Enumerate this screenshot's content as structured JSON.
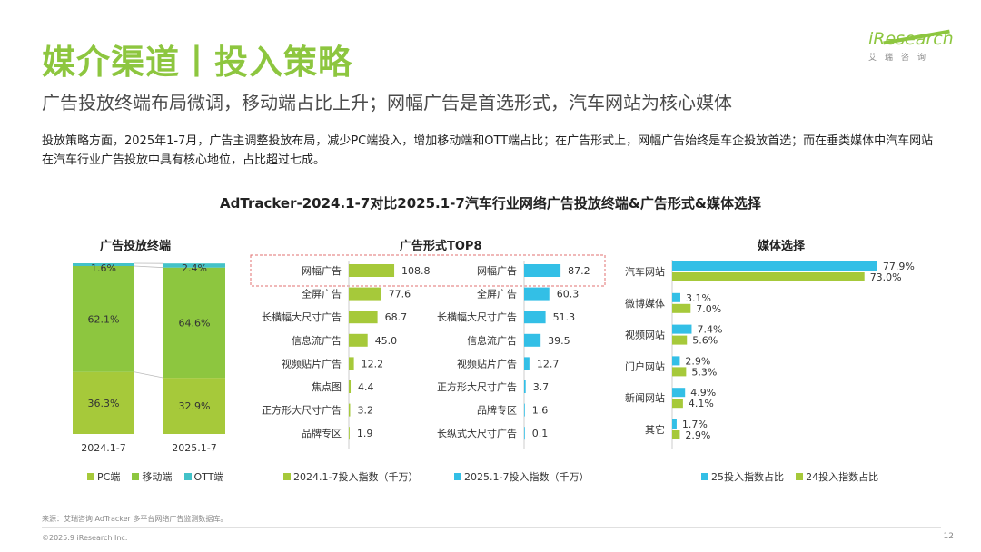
{
  "header": {
    "title": "媒介渠道丨投入策略",
    "subtitle": "广告投放终端布局微调，移动端占比上升；网幅广告是首选形式，汽车网站为核心媒体",
    "description": "投放策略方面，2025年1-7月，广告主调整投放布局，减少PC端投入，增加移动端和OTT端占比；在广告形式上，网幅广告始终是车企投放首选；而在垂类媒体中汽车网站在汽车行业广告投放中具有核心地位，占比超过七成。",
    "logo_text": "iResearch",
    "logo_sub": "艾瑞咨询"
  },
  "chart_main_title": "AdTracker-2024.1-7对比2025.1-7汽车行业网络广告投放终端&广告形式&媒体选择",
  "footer": {
    "source": "来源：艾瑞咨询 AdTracker 多平台网络广告监测数据库。",
    "copyright": "©2025.9 iResearch Inc.",
    "page": "12"
  },
  "colors": {
    "green": "#a6c93a",
    "blue": "#33bfe6",
    "teal": "#43c2c8",
    "dashed_red": "#e07070"
  },
  "chart_data": [
    {
      "type": "bar",
      "stacked": true,
      "title": "广告投放终端",
      "categories": [
        "2024.1-7",
        "2025.1-7"
      ],
      "series": [
        {
          "name": "PC端",
          "values": [
            36.3,
            32.9
          ],
          "labels": [
            "36.3%",
            "32.9%"
          ]
        },
        {
          "name": "移动端",
          "values": [
            62.1,
            64.6
          ],
          "labels": [
            "62.1%",
            "64.6%"
          ]
        },
        {
          "name": "OTT端",
          "values": [
            1.6,
            2.4
          ],
          "labels": [
            "1.6%",
            "2.4%"
          ]
        }
      ]
    },
    {
      "type": "bar",
      "orientation": "horizontal",
      "title": "广告形式TOP8",
      "panels": [
        {
          "series_name": "2024.1-7投入指数（千万）",
          "categories": [
            "网幅广告",
            "全屏广告",
            "长横幅大尺寸广告",
            "信息流广告",
            "视频贴片广告",
            "焦点图",
            "正方形大尺寸广告",
            "品牌专区"
          ],
          "values": [
            108.8,
            77.6,
            68.7,
            45.0,
            12.2,
            4.4,
            3.2,
            1.9
          ],
          "labels": [
            "108.8",
            "77.6",
            "68.7",
            "45.0",
            "12.2",
            "4.4",
            "3.2",
            "1.9"
          ]
        },
        {
          "series_name": "2025.1-7投入指数（千万）",
          "categories": [
            "网幅广告",
            "全屏广告",
            "长横幅大尺寸广告",
            "信息流广告",
            "视频贴片广告",
            "正方形大尺寸广告",
            "品牌专区",
            "长纵式大尺寸广告"
          ],
          "values": [
            87.2,
            60.3,
            51.3,
            39.5,
            12.7,
            3.7,
            1.6,
            0.1
          ],
          "labels": [
            "87.2",
            "60.3",
            "51.3",
            "39.5",
            "12.7",
            "3.7",
            "1.6",
            "0.1"
          ]
        }
      ]
    },
    {
      "type": "bar",
      "orientation": "horizontal",
      "title": "媒体选择",
      "categories": [
        "汽车网站",
        "微博媒体",
        "视频网站",
        "门户网站",
        "新闻网站",
        "其它"
      ],
      "series": [
        {
          "name": "25投入指数占比",
          "values": [
            77.9,
            3.1,
            7.4,
            2.9,
            4.9,
            1.7
          ],
          "labels": [
            "77.9%",
            "3.1%",
            "7.4%",
            "2.9%",
            "4.9%",
            "1.7%"
          ]
        },
        {
          "name": "24投入指数占比",
          "values": [
            73.0,
            7.0,
            5.6,
            5.3,
            4.1,
            2.9
          ],
          "labels": [
            "73.0%",
            "7.0%",
            "5.6%",
            "5.3%",
            "4.1%",
            "2.9%"
          ]
        }
      ]
    }
  ]
}
